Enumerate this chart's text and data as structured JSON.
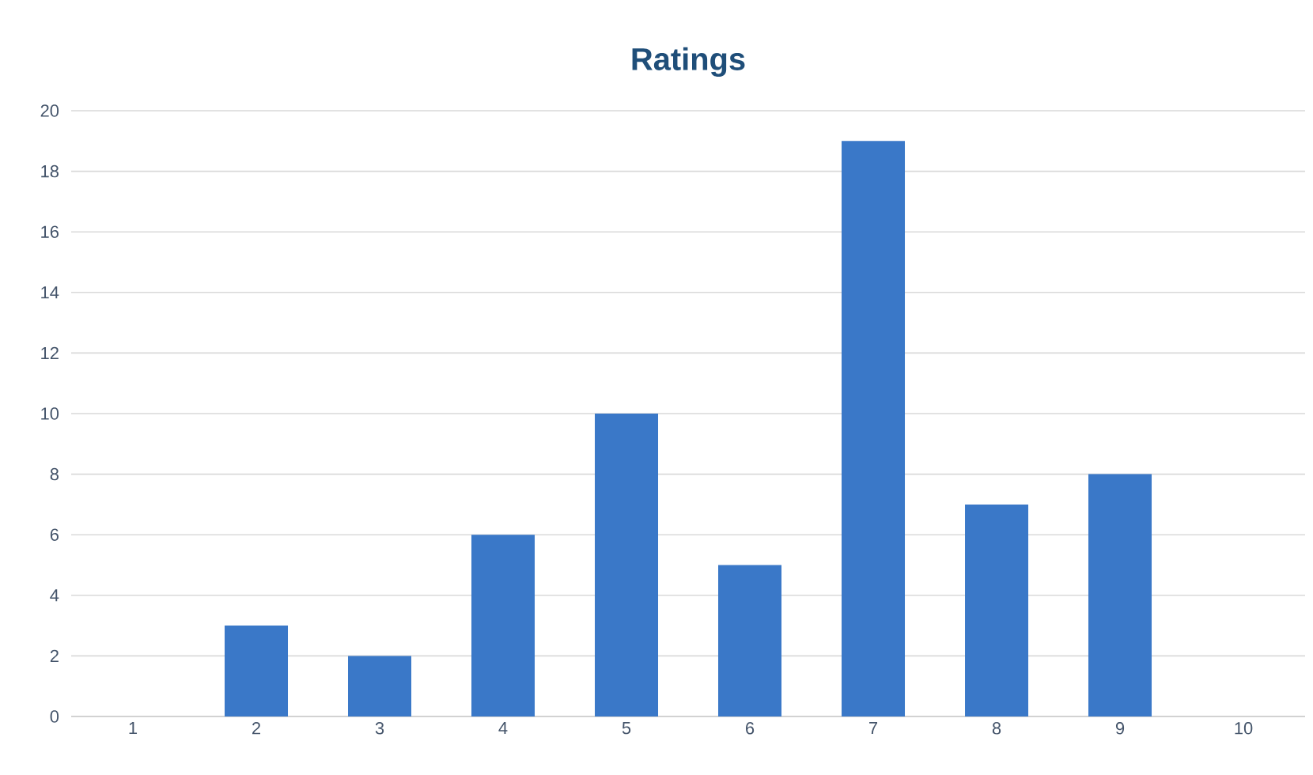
{
  "chart_data": {
    "type": "bar",
    "title": "Ratings",
    "categories": [
      "1",
      "2",
      "3",
      "4",
      "5",
      "6",
      "7",
      "8",
      "9",
      "10"
    ],
    "values": [
      0,
      3,
      2,
      6,
      10,
      5,
      19,
      7,
      8,
      0
    ],
    "color": "#3a78c8",
    "ylim": [
      0,
      20
    ],
    "yticks": [
      0,
      2,
      4,
      6,
      8,
      10,
      12,
      14,
      16,
      18,
      20
    ],
    "grid": "y"
  }
}
